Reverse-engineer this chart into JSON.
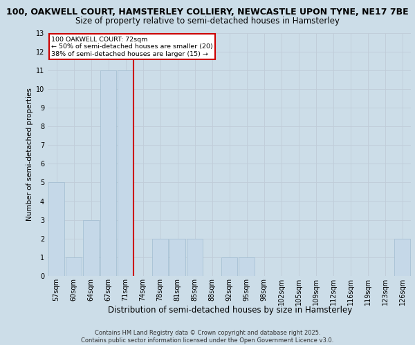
{
  "title_line1": "100, OAKWELL COURT, HAMSTERLEY COLLIERY, NEWCASTLE UPON TYNE, NE17 7BE",
  "title_line2": "Size of property relative to semi-detached houses in Hamsterley",
  "xlabel": "Distribution of semi-detached houses by size in Hamsterley",
  "ylabel": "Number of semi-detached properties",
  "categories": [
    "57sqm",
    "60sqm",
    "64sqm",
    "67sqm",
    "71sqm",
    "74sqm",
    "78sqm",
    "81sqm",
    "85sqm",
    "88sqm",
    "92sqm",
    "95sqm",
    "98sqm",
    "102sqm",
    "105sqm",
    "109sqm",
    "112sqm",
    "116sqm",
    "119sqm",
    "123sqm",
    "126sqm"
  ],
  "values": [
    5,
    1,
    3,
    11,
    11,
    0,
    2,
    2,
    2,
    0,
    1,
    1,
    0,
    0,
    0,
    0,
    0,
    0,
    0,
    0,
    2
  ],
  "bar_color": "#c5d8e8",
  "bar_edgecolor": "#a0bcd0",
  "annotation_text": "100 OAKWELL COURT: 72sqm\n← 50% of semi-detached houses are smaller (20)\n38% of semi-detached houses are larger (15) →",
  "annotation_box_color": "#ffffff",
  "annotation_box_edgecolor": "#cc0000",
  "vline_color": "#cc0000",
  "vline_x": 4.45,
  "ylim": [
    0,
    13
  ],
  "yticks": [
    0,
    1,
    2,
    3,
    4,
    5,
    6,
    7,
    8,
    9,
    10,
    11,
    12,
    13
  ],
  "grid_color": "#c0ccd8",
  "background_color": "#ccdde8",
  "plot_background": "#ccdde8",
  "footer": "Contains HM Land Registry data © Crown copyright and database right 2025.\nContains public sector information licensed under the Open Government Licence v3.0.",
  "title_fontsize": 9,
  "subtitle_fontsize": 8.5,
  "tick_fontsize": 7,
  "ylabel_fontsize": 7.5,
  "xlabel_fontsize": 8.5,
  "footer_fontsize": 6.0
}
